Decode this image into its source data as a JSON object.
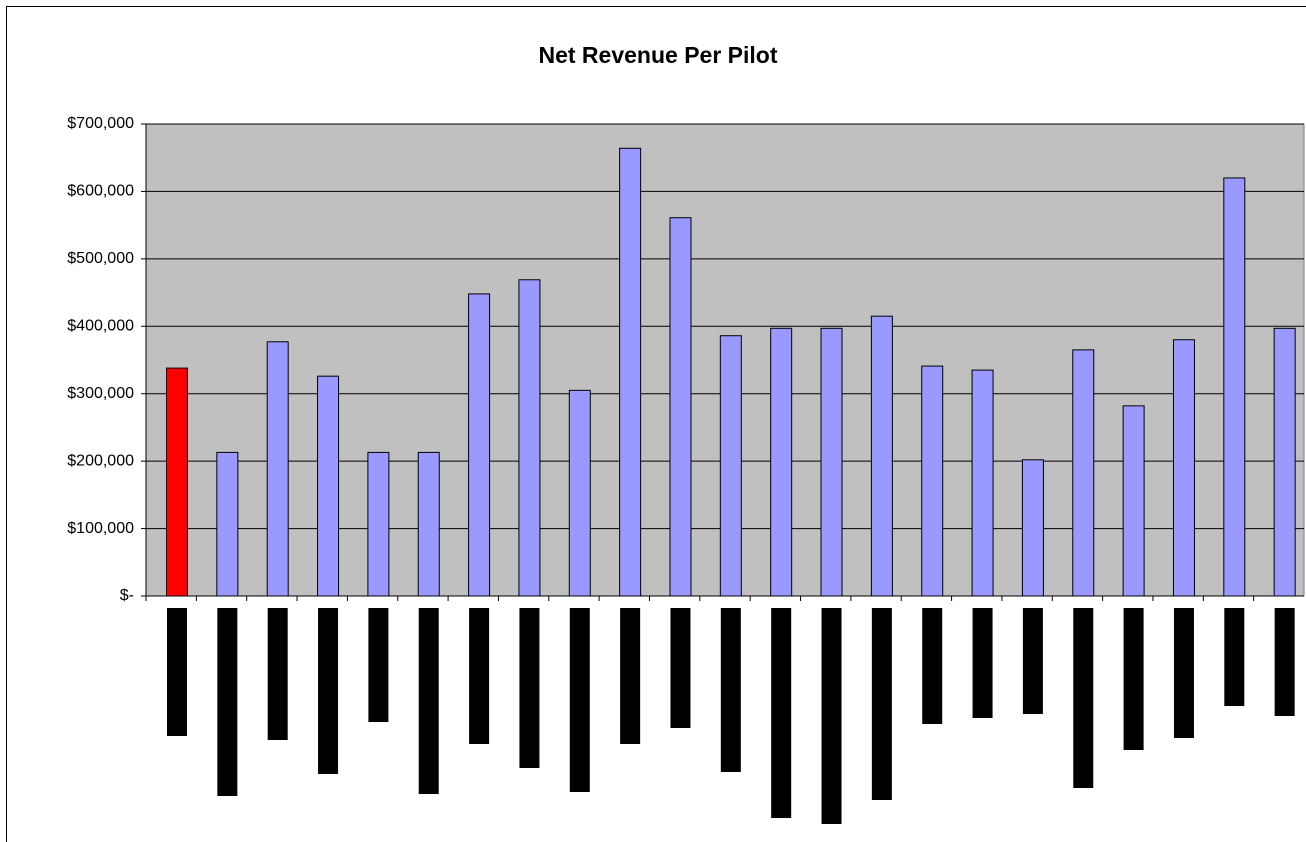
{
  "chart_data": {
    "type": "bar",
    "title": "Net Revenue Per Pilot",
    "categories": [
      null,
      null,
      null,
      null,
      null,
      null,
      null,
      null,
      null,
      null,
      null,
      null,
      null,
      null,
      null,
      null,
      null,
      null,
      null,
      null,
      null,
      null,
      null
    ],
    "values": [
      338000,
      213000,
      377000,
      326000,
      213000,
      213000,
      448000,
      469000,
      305000,
      664000,
      561000,
      386000,
      397000,
      397000,
      415000,
      341000,
      335000,
      202000,
      365000,
      282000,
      380000,
      620000,
      397000
    ],
    "colors": [
      "#ff0000",
      "#9999ff",
      "#9999ff",
      "#9999ff",
      "#9999ff",
      "#9999ff",
      "#9999ff",
      "#9999ff",
      "#9999ff",
      "#9999ff",
      "#9999ff",
      "#9999ff",
      "#9999ff",
      "#9999ff",
      "#9999ff",
      "#9999ff",
      "#9999ff",
      "#9999ff",
      "#9999ff",
      "#9999ff",
      "#9999ff",
      "#9999ff",
      "#9999ff"
    ],
    "ylim": [
      0,
      700000
    ],
    "yticks": [
      {
        "value": 0,
        "label": "$-"
      },
      {
        "value": 100000,
        "label": "$100,000"
      },
      {
        "value": 200000,
        "label": "$200,000"
      },
      {
        "value": 300000,
        "label": "$300,000"
      },
      {
        "value": 400000,
        "label": "$400,000"
      },
      {
        "value": 500000,
        "label": "$500,000"
      },
      {
        "value": 600000,
        "label": "$600,000"
      },
      {
        "value": 700000,
        "label": "$700,000"
      }
    ],
    "grid": true
  }
}
